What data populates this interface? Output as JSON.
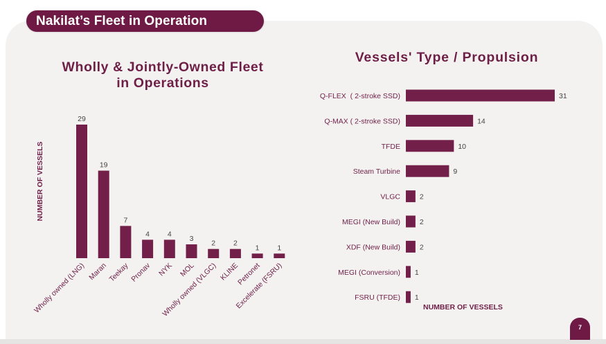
{
  "header": {
    "title": "Nakilat’s Fleet in Operation"
  },
  "page_number": "7",
  "colors": {
    "bar": "#72204a",
    "text": "#6e1f47",
    "panel": "#f4f2f1",
    "header": "#6e1a45"
  },
  "chart_data": [
    {
      "type": "bar",
      "orientation": "vertical",
      "title_lines": [
        "Wholly & Jointly-Owned Fleet",
        "in Operations"
      ],
      "xlabel": "",
      "ylabel": "NUMBER OF VESSELS",
      "categories": [
        "Wholly owned (LNG)",
        "Maran",
        "Teekay",
        "Pronav",
        "NYK",
        "MOL",
        "Wholly owned (VLGC)",
        "KLINE",
        "Petronet",
        "Excelerate (FSRU)"
      ],
      "values": [
        29,
        19,
        7,
        4,
        4,
        3,
        2,
        2,
        1,
        1
      ],
      "ylim": [
        0,
        29
      ],
      "grid": false,
      "data_labels": true
    },
    {
      "type": "bar",
      "orientation": "horizontal",
      "title": "Vessels' Type / Propulsion",
      "xlabel": "NUMBER OF VESSELS",
      "ylabel": "",
      "categories": [
        "Q-FLEX  ( 2-stroke SSD)",
        "Q-MAX ( 2-stroke SSD)",
        "TFDE",
        "Steam Turbine",
        "VLGC",
        "MEGI (New Build)",
        "XDF (New Build)",
        "MEGI (Conversion)",
        "FSRU (TFDE)"
      ],
      "values": [
        31,
        14,
        10,
        9,
        2,
        2,
        2,
        1,
        1
      ],
      "xlim": [
        0,
        31
      ],
      "grid": false,
      "data_labels": true
    }
  ]
}
